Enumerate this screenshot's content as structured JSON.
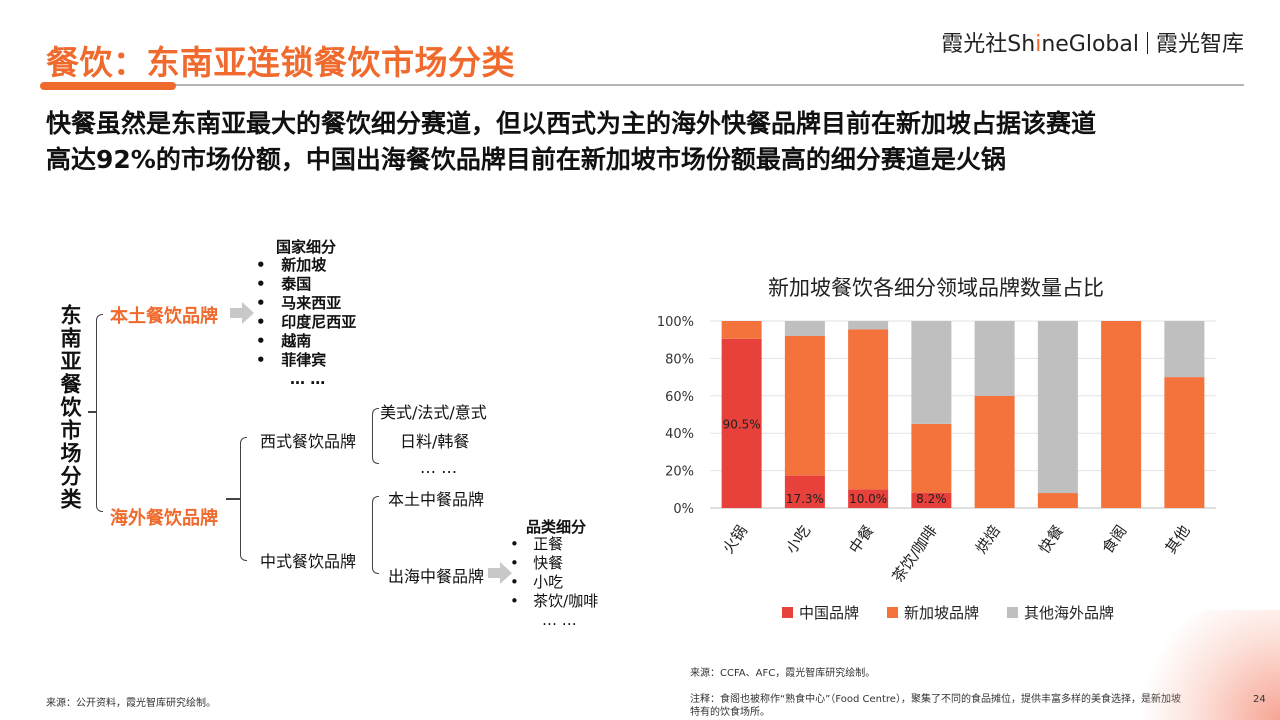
{
  "header": {
    "title": "餐饮：东南亚连锁餐饮市场分类",
    "brand_prefix": "霞光社Sh",
    "brand_i": "i",
    "brand_suffix": "neGlobal",
    "brand_right": "霞光智库",
    "accent_color": "#ef6a2c"
  },
  "subtitle": {
    "line1": "快餐虽然是东南亚最大的餐饮细分赛道，但以西式为主的海外快餐品牌目前在新加坡占据该赛道",
    "line2": "高达92%的市场份额，中国出海餐饮品牌目前在新加坡市场份额最高的细分赛道是火锅"
  },
  "tree": {
    "root": "东南亚餐饮市场分类",
    "local": {
      "label": "本土餐饮品牌",
      "list_title": "国家细分",
      "countries": [
        "新加坡",
        "泰国",
        "马来西亚",
        "印度尼西亚",
        "越南",
        "菲律宾"
      ],
      "more": "… …"
    },
    "overseas": {
      "label": "海外餐饮品牌",
      "western": {
        "label": "西式餐饮品牌",
        "items": [
          "美式/法式/意式",
          "日料/韩餐",
          "… …"
        ]
      },
      "chinese": {
        "label": "中式餐饮品牌",
        "local_cn": "本土中餐品牌",
        "export_cn": "出海中餐品牌",
        "list_title": "品类细分",
        "categories": [
          "正餐",
          "快餐",
          "小吃",
          "茶饮/咖啡"
        ],
        "more": "… …"
      }
    }
  },
  "chart_data": {
    "type": "bar",
    "stacked": true,
    "title": "新加坡餐饮各细分领域品牌数量占比",
    "categories": [
      "火锅",
      "小吃",
      "中餐",
      "茶饮/咖啡",
      "烘焙",
      "快餐",
      "食阁",
      "其他"
    ],
    "series": [
      {
        "name": "中国品牌",
        "color": "#e8403a",
        "values": [
          90.5,
          17.3,
          10.0,
          8.2,
          0,
          0,
          0,
          0
        ]
      },
      {
        "name": "新加坡品牌",
        "color": "#f4733d",
        "values": [
          9.5,
          74.7,
          85.5,
          36.8,
          60,
          8,
          100,
          70
        ]
      },
      {
        "name": "其他海外品牌",
        "color": "#bfbfbf",
        "values": [
          0,
          8.0,
          4.5,
          55.0,
          40,
          92,
          0,
          30
        ]
      }
    ],
    "data_labels": [
      "90.5%",
      "17.3%",
      "10.0%",
      "8.2%"
    ],
    "yticks": [
      "0%",
      "20%",
      "40%",
      "60%",
      "80%",
      "100%"
    ],
    "ylim": [
      0,
      100
    ],
    "grid": true,
    "legend_position": "bottom"
  },
  "notes": {
    "chart_source": "来源：CCFA、AFC，霞光智库研究绘制。",
    "chart_note_line1": "注释：食阁也被称作“熟食中心”（Food Centre），聚集了不同的食品摊位，提供丰富多样的美食选择，是新加坡",
    "chart_note_line2": "特有的饮食场所。",
    "left_source": "来源：公开资料，霞光智库研究绘制。",
    "page_number": "24"
  }
}
